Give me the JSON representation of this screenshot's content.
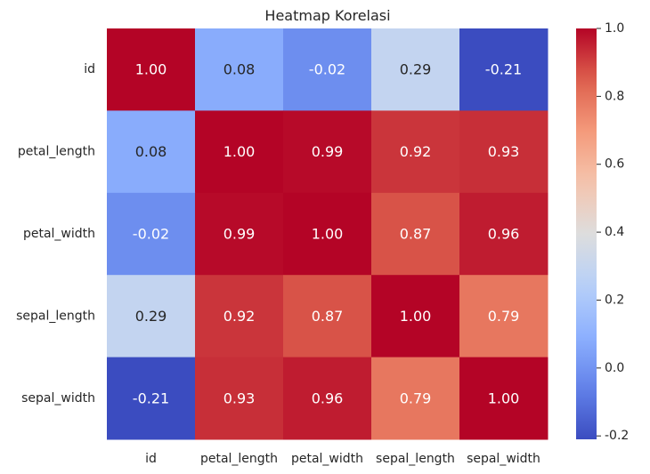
{
  "chart_data": {
    "type": "heatmap",
    "title": "Heatmap Korelasi",
    "xlabel": "",
    "ylabel": "",
    "x_categories": [
      "id",
      "petal_length",
      "petal_width",
      "sepal_length",
      "sepal_width"
    ],
    "y_categories": [
      "id",
      "petal_length",
      "petal_width",
      "sepal_length",
      "sepal_width"
    ],
    "values": [
      [
        1.0,
        0.08,
        -0.02,
        0.29,
        -0.21
      ],
      [
        0.08,
        1.0,
        0.99,
        0.92,
        0.93
      ],
      [
        -0.02,
        0.99,
        1.0,
        0.87,
        0.96
      ],
      [
        0.29,
        0.92,
        0.87,
        1.0,
        0.79
      ],
      [
        -0.21,
        0.93,
        0.96,
        0.79,
        1.0
      ]
    ],
    "value_format": "0.00",
    "colormap": "coolwarm",
    "colorbar": {
      "range": [
        -0.21,
        1.0
      ],
      "ticks": [
        "-0.2",
        "0.0",
        "0.2",
        "0.4",
        "0.6",
        "0.8",
        "1.0"
      ]
    },
    "grid": false,
    "legend": "colorbar-right"
  }
}
